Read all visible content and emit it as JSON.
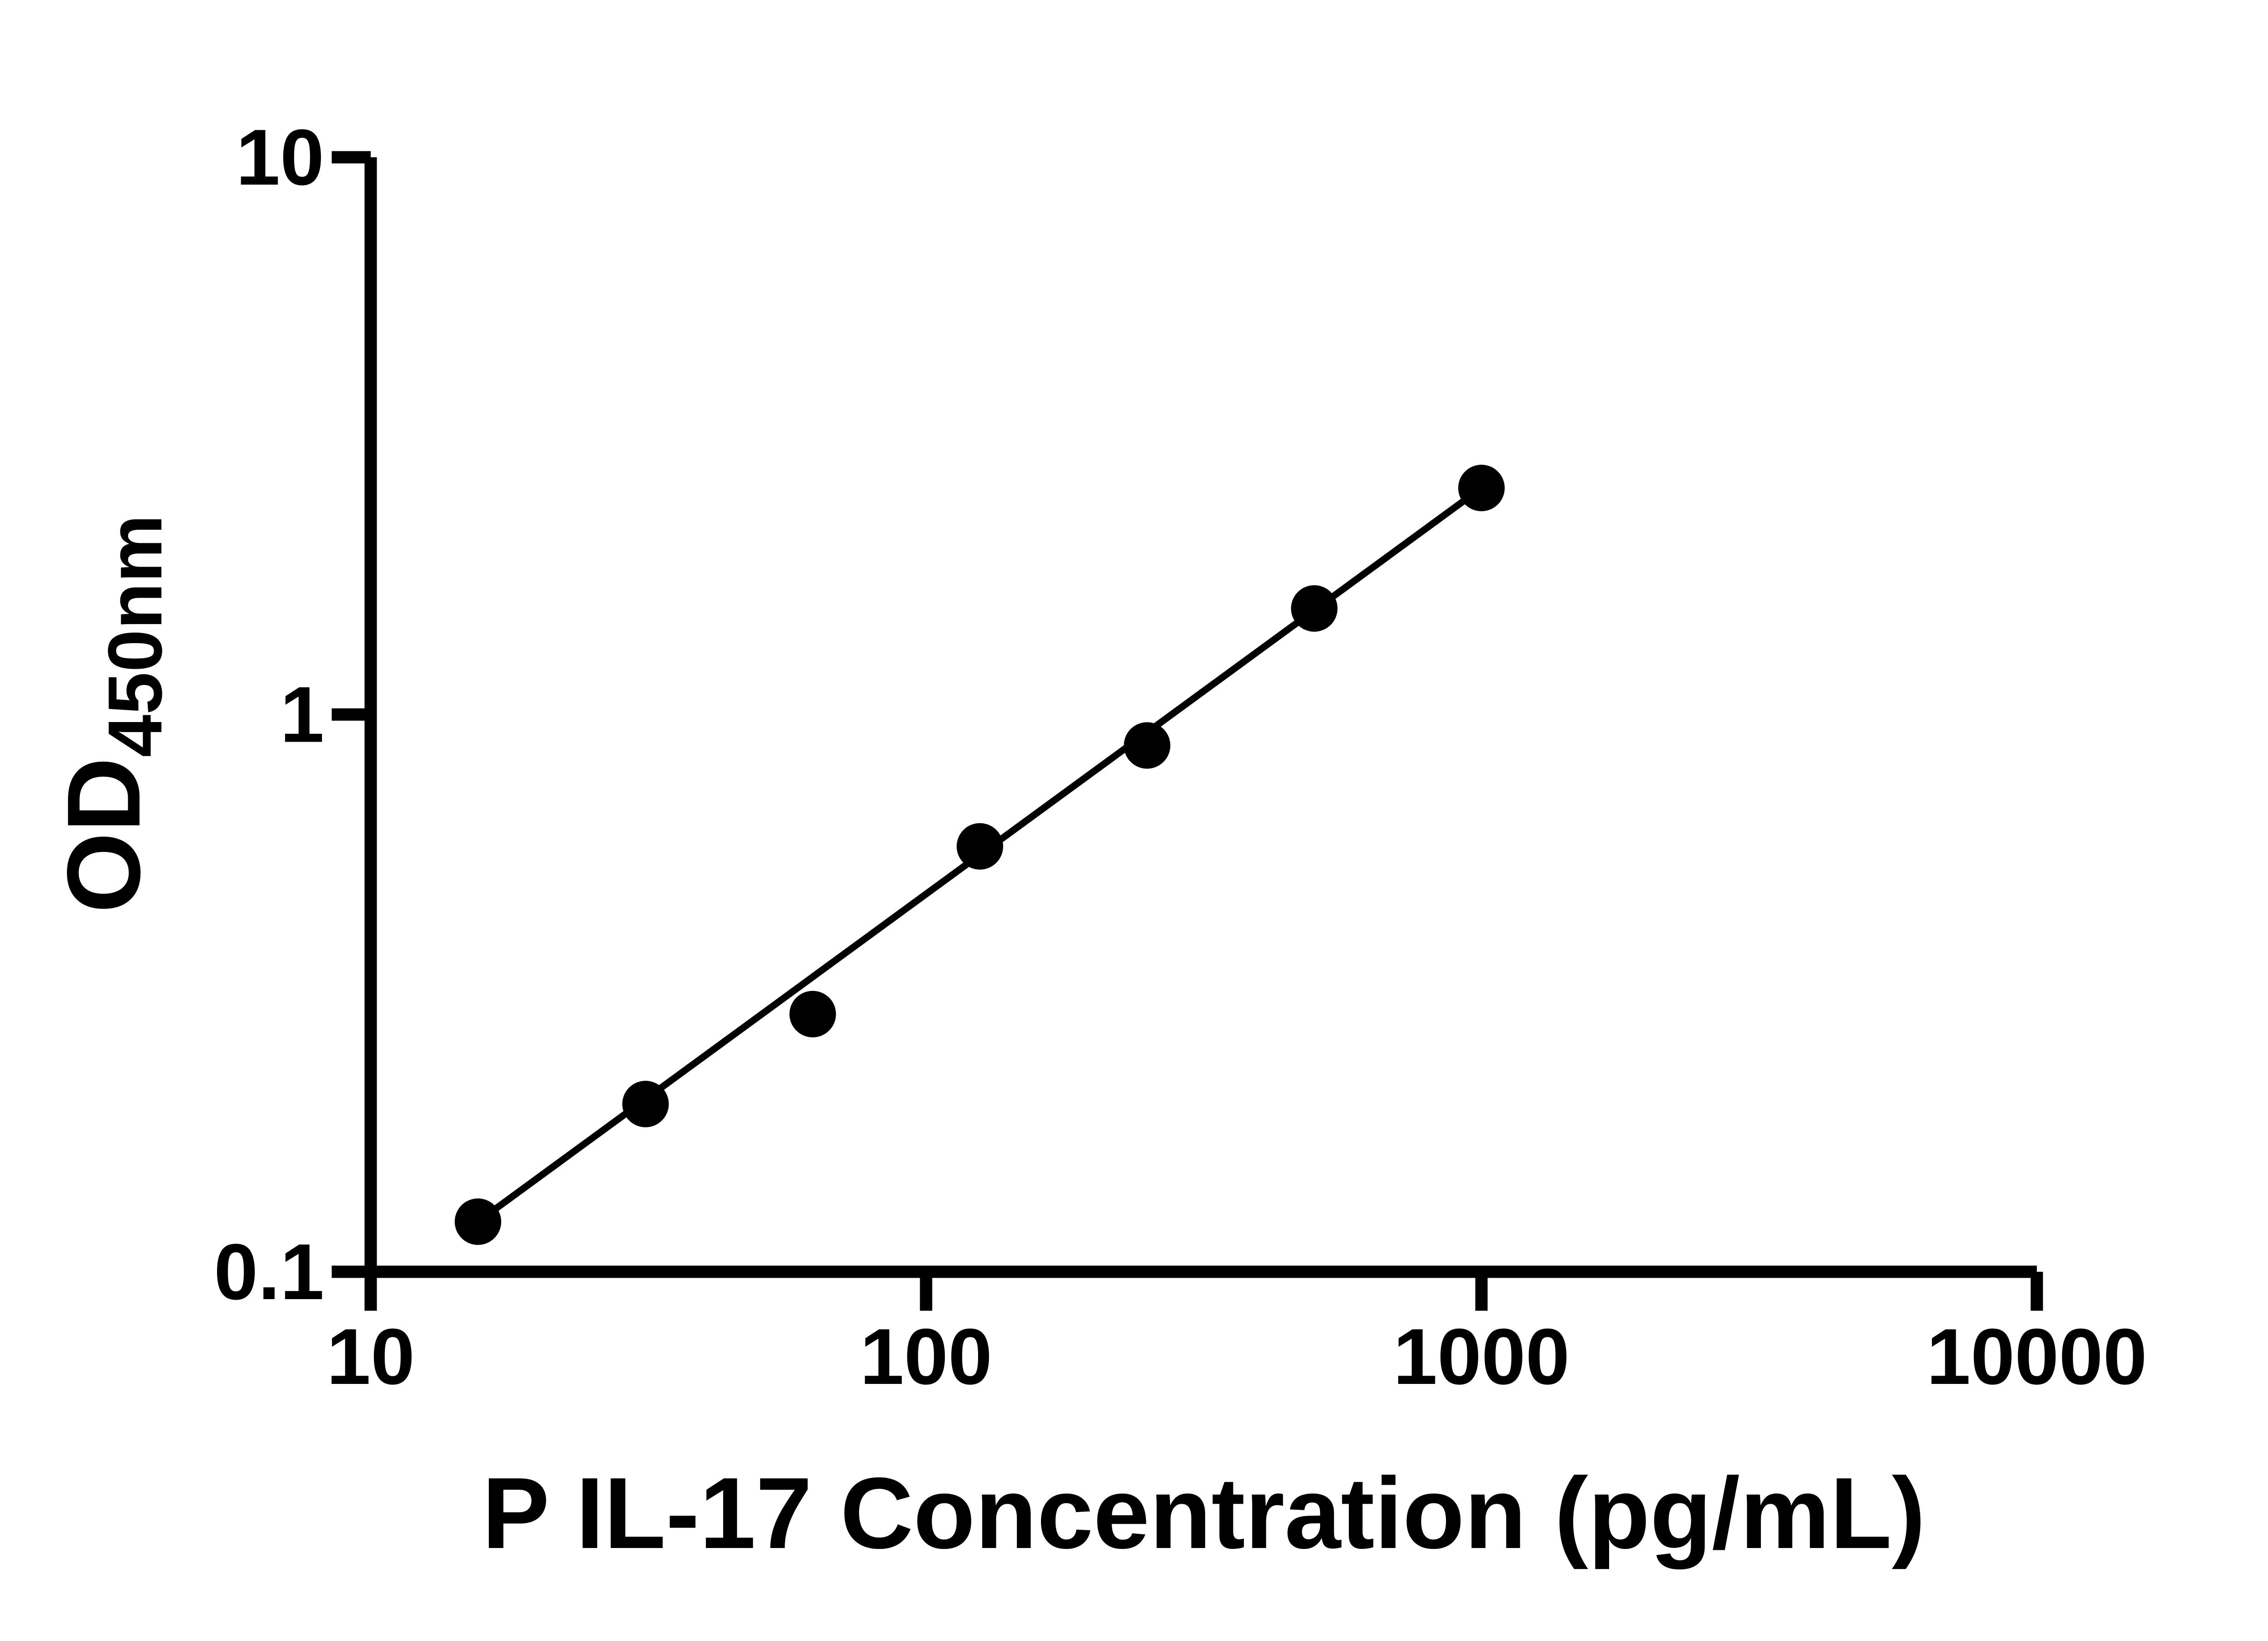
{
  "page": {
    "background": "#ffffff"
  },
  "chart_data": {
    "type": "scatter",
    "title": "",
    "xlabel": "P IL-17 Concentration (pg/mL)",
    "ylabel_main": "OD",
    "ylabel_sub": "450nm",
    "x_scale": "log",
    "y_scale": "log",
    "xlim": [
      10,
      10000
    ],
    "ylim": [
      0.1,
      10
    ],
    "x_ticks": {
      "values": [
        10,
        100,
        1000,
        10000
      ],
      "labels": [
        "10",
        "100",
        "1000",
        "10000"
      ]
    },
    "y_ticks": {
      "values": [
        0.1,
        1,
        10
      ],
      "labels": [
        "0.1",
        "1",
        "10"
      ]
    },
    "grid": false,
    "legend": false,
    "series": [
      {
        "name": "standard-curve-points",
        "marker": "circle",
        "x": [
          15.6,
          31.25,
          62.5,
          125,
          250,
          500,
          1000
        ],
        "y": [
          0.123,
          0.2,
          0.29,
          0.58,
          0.88,
          1.55,
          2.55
        ]
      }
    ],
    "trendline": {
      "x": [
        15.6,
        1000
      ],
      "y": [
        0.123,
        2.55
      ]
    },
    "colors": {
      "axis": "#000000",
      "point": "#000000",
      "line": "#000000",
      "text": "#000000"
    }
  }
}
